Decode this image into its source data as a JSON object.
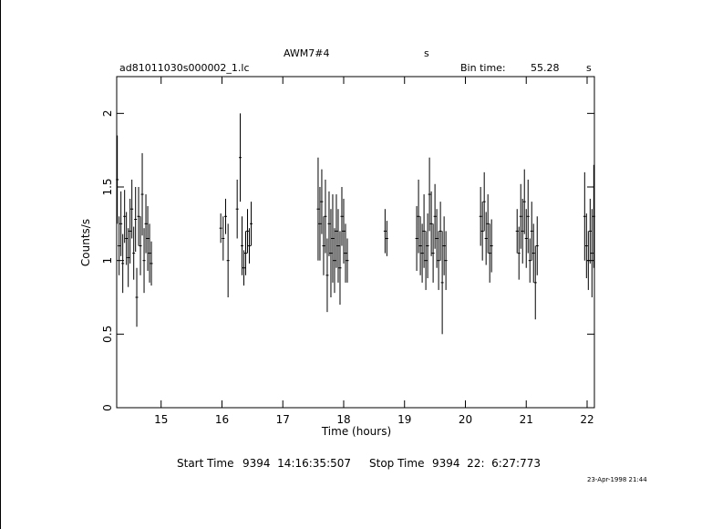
{
  "header": {
    "object_name": "AWM7#4",
    "object_unit": "s",
    "file_name": "ad81011030s000002_1.lc",
    "bin_time_label": "Bin time:",
    "bin_time_value": "55.28",
    "bin_time_unit": "s"
  },
  "footer": {
    "start_label": "Start Time",
    "start_value": "9394  14:16:35:507",
    "stop_label": "Stop Time",
    "stop_value": "9394  22:  6:27:773",
    "timestamp": "23-Apr-1998 21:44"
  },
  "chart_data": {
    "type": "scatter",
    "xlabel": "Time (hours)",
    "ylabel": "Counts/s",
    "xlim": [
      14.27,
      22.12
    ],
    "ylim": [
      0,
      2.25
    ],
    "xticks": [
      15,
      16,
      17,
      18,
      19,
      20,
      21,
      22
    ],
    "yticks": [
      0,
      0.5,
      1,
      1.5,
      2
    ],
    "ytick_labels": [
      "0",
      "0.5",
      "1",
      "1.5",
      "2"
    ],
    "grid": false,
    "series": [
      {
        "points": [
          [
            14.28,
            1.55,
            0.3
          ],
          [
            14.31,
            1.1,
            0.2
          ],
          [
            14.34,
            1.25,
            0.22
          ],
          [
            14.37,
            0.98,
            0.2
          ],
          [
            14.4,
            1.3,
            0.18
          ],
          [
            14.43,
            1.15,
            0.18
          ],
          [
            14.46,
            1.02,
            0.2
          ],
          [
            14.49,
            1.2,
            0.22
          ],
          [
            14.52,
            1.35,
            0.2
          ],
          [
            14.55,
            1.05,
            0.18
          ],
          [
            14.58,
            1.28,
            0.22
          ],
          [
            14.6,
            0.75,
            0.2
          ],
          [
            14.63,
            1.3,
            0.2
          ],
          [
            14.66,
            1.1,
            0.2
          ],
          [
            14.69,
            1.45,
            0.28
          ],
          [
            14.72,
            1.0,
            0.22
          ],
          [
            14.75,
            1.25,
            0.2
          ],
          [
            14.78,
            1.15,
            0.22
          ],
          [
            14.81,
            1.05,
            0.2
          ],
          [
            14.84,
            0.98,
            0.15
          ],
          [
            15.98,
            1.22,
            0.1
          ],
          [
            16.02,
            1.15,
            0.15
          ],
          [
            16.06,
            1.3,
            0.12
          ],
          [
            16.1,
            1.0,
            0.25
          ],
          [
            16.25,
            1.35,
            0.2
          ],
          [
            16.3,
            1.7,
            0.3
          ],
          [
            16.33,
            1.1,
            0.2
          ],
          [
            16.36,
            0.95,
            0.12
          ],
          [
            16.39,
            1.05,
            0.15
          ],
          [
            16.42,
            1.2,
            0.15
          ],
          [
            16.45,
            1.1,
            0.12
          ],
          [
            16.48,
            1.25,
            0.15
          ],
          [
            17.58,
            1.35,
            0.35
          ],
          [
            17.61,
            1.25,
            0.25
          ],
          [
            17.64,
            1.4,
            0.22
          ],
          [
            17.67,
            1.1,
            0.2
          ],
          [
            17.7,
            1.3,
            0.25
          ],
          [
            17.73,
            0.9,
            0.25
          ],
          [
            17.76,
            1.25,
            0.22
          ],
          [
            17.79,
            1.05,
            0.3
          ],
          [
            17.82,
            1.15,
            0.3
          ],
          [
            17.85,
            1.0,
            0.22
          ],
          [
            17.88,
            1.2,
            0.25
          ],
          [
            17.91,
            1.1,
            0.25
          ],
          [
            17.94,
            0.95,
            0.25
          ],
          [
            17.97,
            1.3,
            0.2
          ],
          [
            18.0,
            1.2,
            0.22
          ],
          [
            18.03,
            1.05,
            0.2
          ],
          [
            18.06,
            1.0,
            0.15
          ],
          [
            18.68,
            1.2,
            0.15
          ],
          [
            18.71,
            1.15,
            0.12
          ],
          [
            19.2,
            1.15,
            0.22
          ],
          [
            19.23,
            1.3,
            0.25
          ],
          [
            19.26,
            1.1,
            0.2
          ],
          [
            19.29,
            1.05,
            0.2
          ],
          [
            19.32,
            1.2,
            0.25
          ],
          [
            19.35,
            1.0,
            0.2
          ],
          [
            19.38,
            1.1,
            0.22
          ],
          [
            19.41,
            1.45,
            0.25
          ],
          [
            19.44,
            1.25,
            0.22
          ],
          [
            19.47,
            1.05,
            0.2
          ],
          [
            19.5,
            1.3,
            0.22
          ],
          [
            19.53,
            1.15,
            0.2
          ],
          [
            19.56,
            1.0,
            0.2
          ],
          [
            19.59,
            1.2,
            0.2
          ],
          [
            19.62,
            0.85,
            0.35
          ],
          [
            19.65,
            1.1,
            0.2
          ],
          [
            19.68,
            1.0,
            0.2
          ],
          [
            20.25,
            1.3,
            0.2
          ],
          [
            20.28,
            1.2,
            0.2
          ],
          [
            20.31,
            1.4,
            0.2
          ],
          [
            20.34,
            1.15,
            0.18
          ],
          [
            20.37,
            1.25,
            0.2
          ],
          [
            20.4,
            1.05,
            0.2
          ],
          [
            20.43,
            1.1,
            0.18
          ],
          [
            20.85,
            1.2,
            0.15
          ],
          [
            20.88,
            1.05,
            0.18
          ],
          [
            20.91,
            1.3,
            0.22
          ],
          [
            20.94,
            1.2,
            0.22
          ],
          [
            20.97,
            1.4,
            0.22
          ],
          [
            21.0,
            1.15,
            0.2
          ],
          [
            21.03,
            1.3,
            0.25
          ],
          [
            21.06,
            1.0,
            0.15
          ],
          [
            21.09,
            1.2,
            0.2
          ],
          [
            21.12,
            1.05,
            0.2
          ],
          [
            21.15,
            0.85,
            0.25
          ],
          [
            21.18,
            1.1,
            0.2
          ],
          [
            21.96,
            1.3,
            0.3
          ],
          [
            21.99,
            1.1,
            0.22
          ],
          [
            22.02,
            1.0,
            0.2
          ],
          [
            22.05,
            1.2,
            0.22
          ],
          [
            22.08,
            1.05,
            0.3
          ],
          [
            22.11,
            1.3,
            0.35
          ]
        ]
      }
    ]
  }
}
